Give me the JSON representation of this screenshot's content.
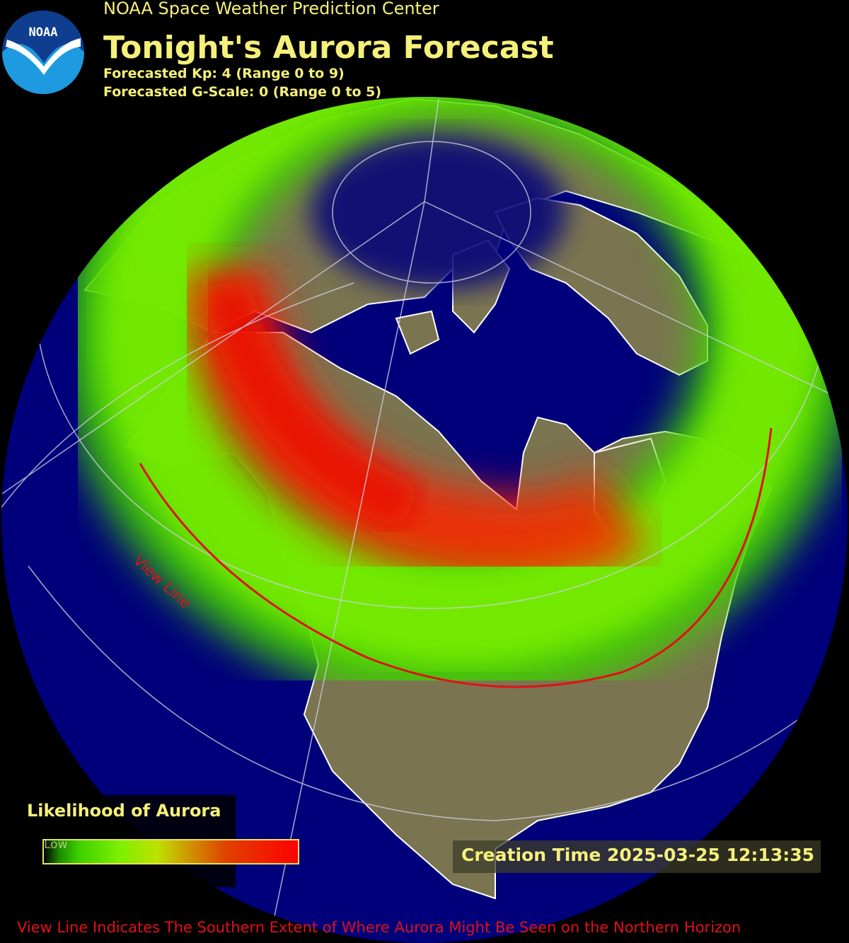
{
  "header": {
    "organization": "NOAA Space Weather Prediction Center",
    "title": "Tonight's Aurora Forecast",
    "kp_line": "Forecasted Kp: 4 (Range 0 to 9)",
    "gscale_line": "Forecasted G-Scale: 0 (Range 0 to 5)",
    "logo_text": "NOAA"
  },
  "forecast": {
    "kp": 4,
    "kp_range": [
      0,
      9
    ],
    "g_scale": 0,
    "g_scale_range": [
      0,
      5
    ]
  },
  "legend": {
    "title": "Likelihood of Aurora",
    "low_label": "Low",
    "colors": [
      "#000000",
      "#3fd000",
      "#7cf000",
      "#d09000",
      "#ff0000"
    ]
  },
  "map": {
    "view_line_label": "View Line",
    "ocean_color": "#00007a",
    "land_color": "#7a7450",
    "view_line_color": "#e0101a"
  },
  "creation_time": "Creation Time 2025-03-25 12:13:35",
  "caption": "View Line Indicates The Southern Extent of Where Aurora Might Be Seen on the Northern Horizon"
}
